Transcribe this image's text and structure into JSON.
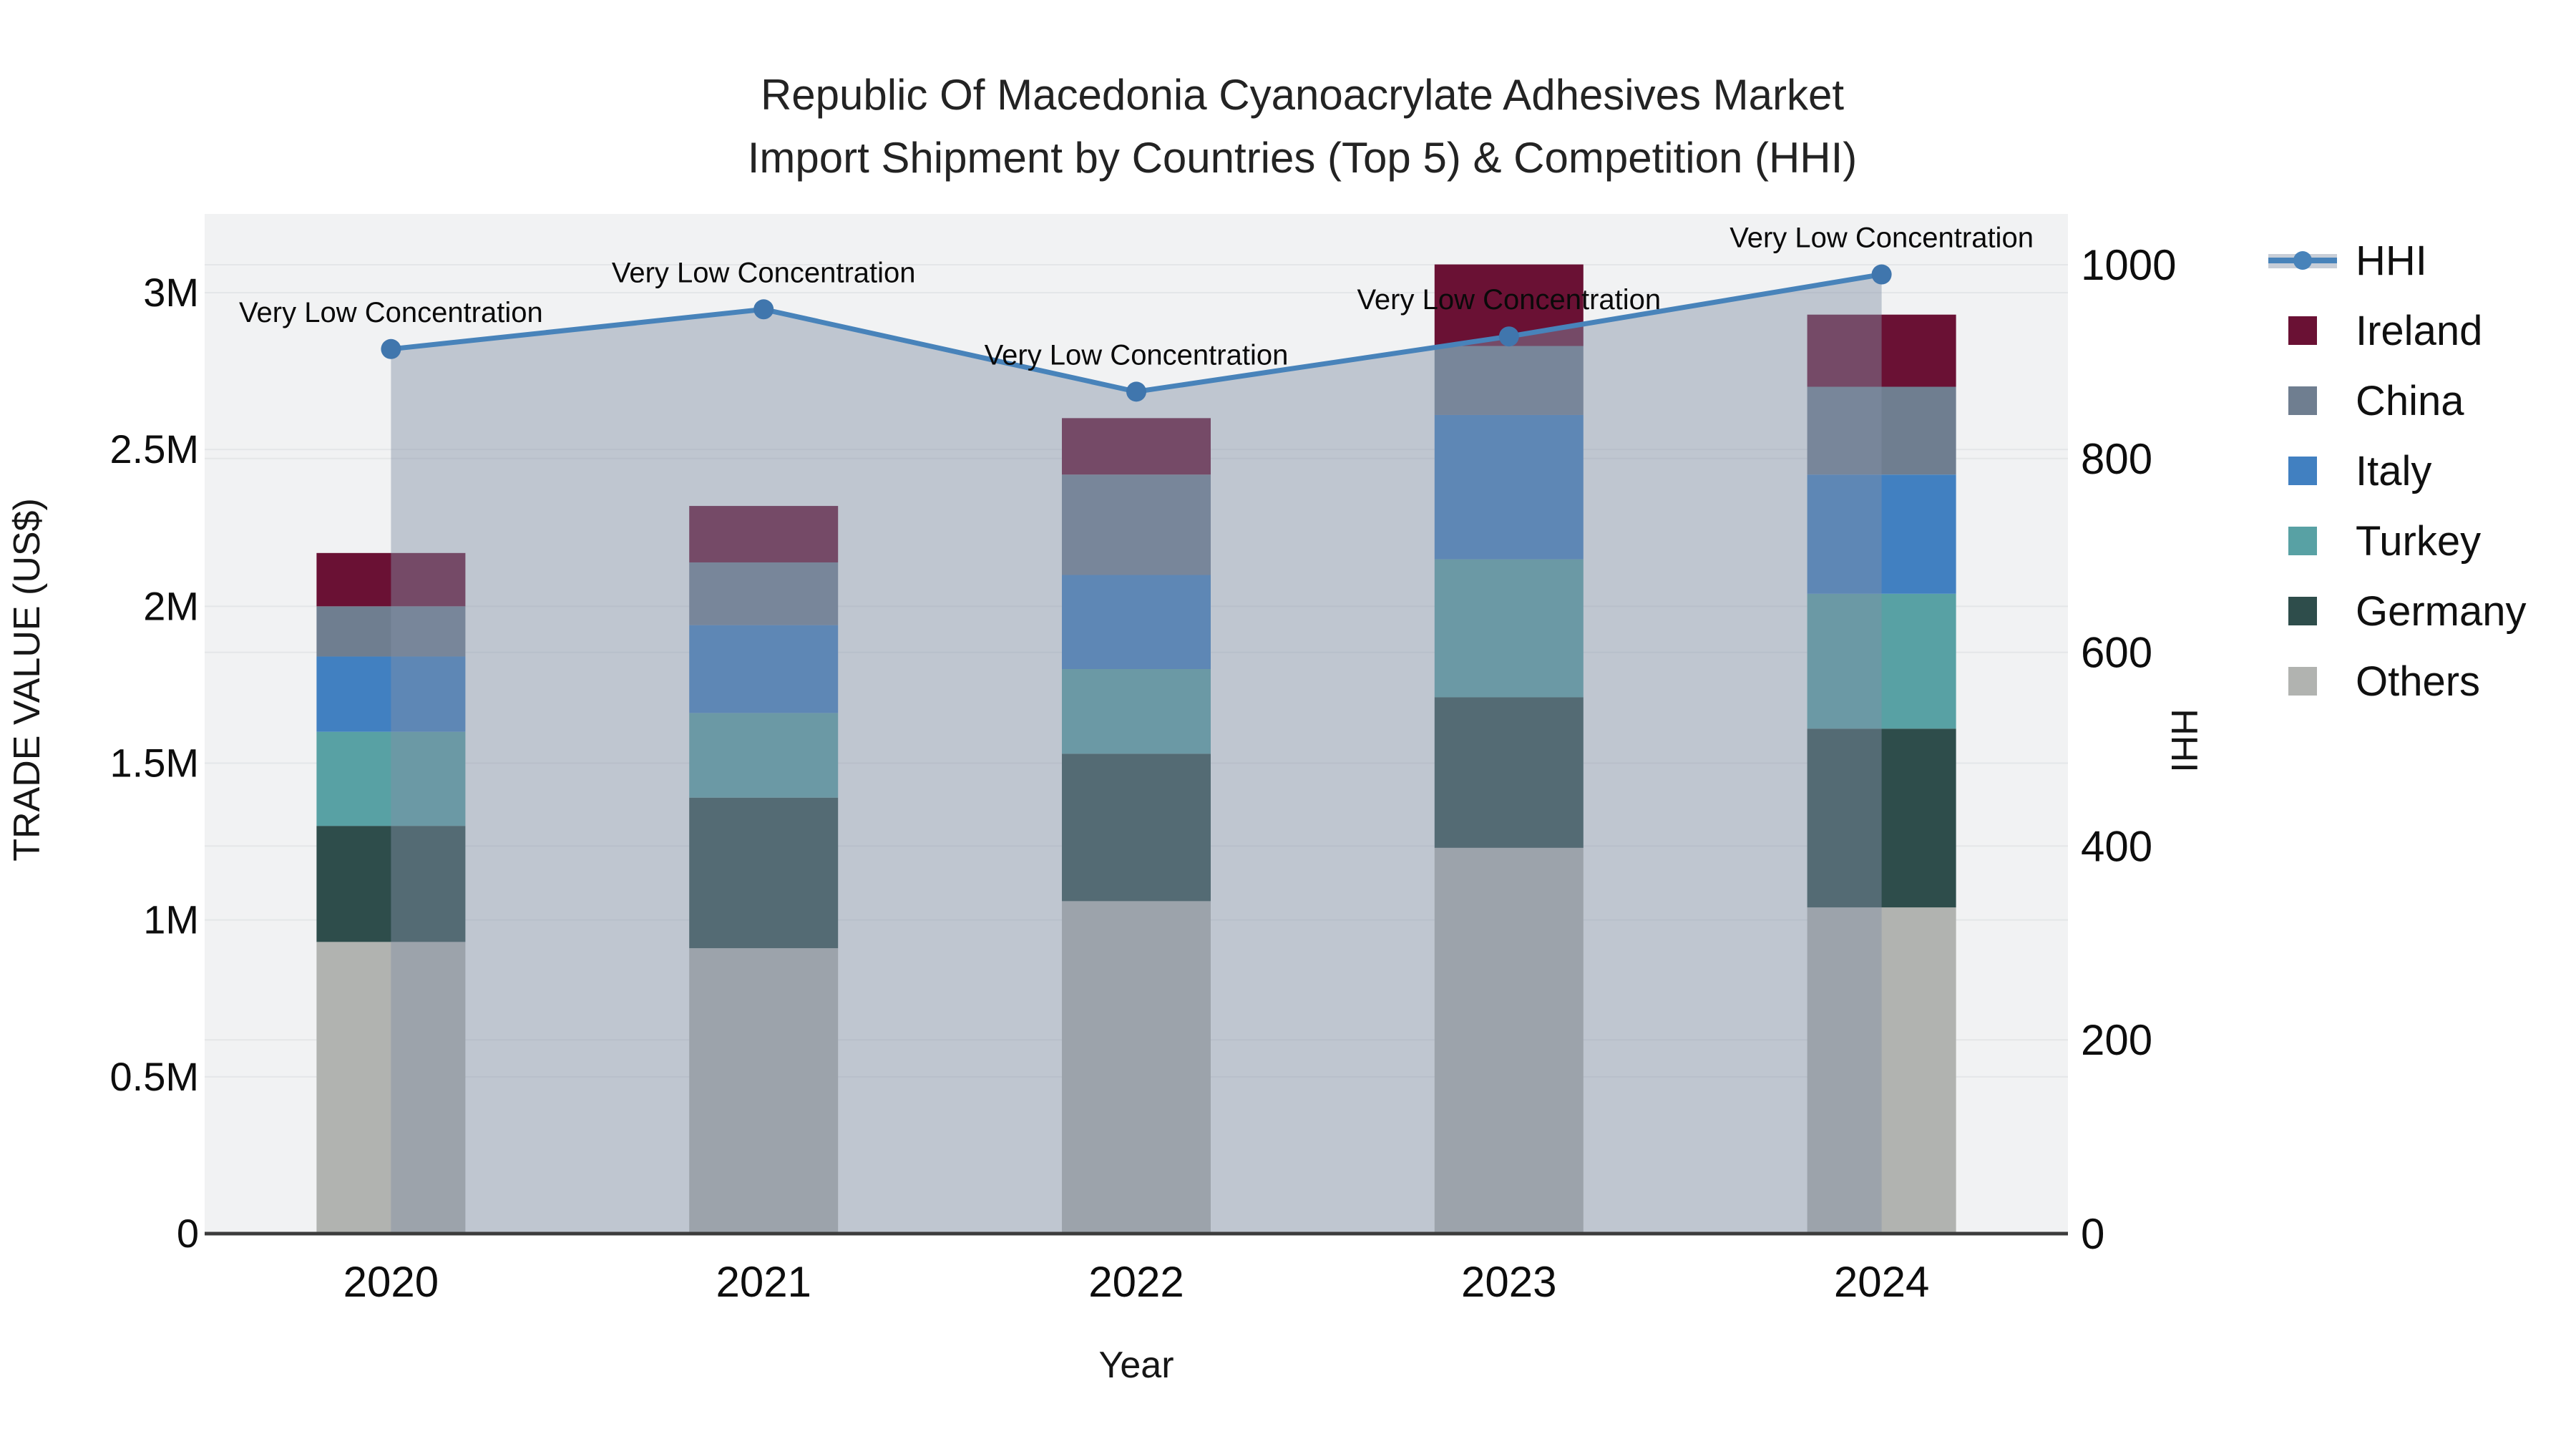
{
  "title": {
    "line1": "Republic Of Macedonia Cyanoacrylate Adhesives Market",
    "line2": "Import Shipment by Countries (Top 5) & Competition (HHI)"
  },
  "axes": {
    "x": {
      "title": "Year"
    },
    "y_left": {
      "title": "TRADE VALUE (US$)",
      "ticks": [
        "0",
        "0.5M",
        "1M",
        "1.5M",
        "2M",
        "2.5M",
        "3M"
      ]
    },
    "y_right": {
      "title": "HHI",
      "ticks": [
        "0",
        "200",
        "400",
        "600",
        "800",
        "1000"
      ]
    }
  },
  "legend": {
    "items": [
      {
        "label": "HHI",
        "type": "line",
        "color": "#4883ba"
      },
      {
        "label": "Ireland",
        "type": "box",
        "color": "#6a1134"
      },
      {
        "label": "China",
        "type": "box",
        "color": "#6f7e90"
      },
      {
        "label": "Italy",
        "type": "box",
        "color": "#4180c1"
      },
      {
        "label": "Turkey",
        "type": "box",
        "color": "#58a1a4"
      },
      {
        "label": "Germany",
        "type": "box",
        "color": "#2e4d4b"
      },
      {
        "label": "Others",
        "type": "box",
        "color": "#b1b3b0"
      }
    ]
  },
  "chart_data": {
    "type": "bar+line",
    "title": "Republic Of Macedonia Cyanoacrylate Adhesives Market — Import Shipment by Countries (Top 5) & Competition (HHI)",
    "categories": [
      "2020",
      "2021",
      "2022",
      "2023",
      "2024"
    ],
    "xlabel": "Year",
    "ylabel_left": "TRADE VALUE (US$)",
    "ylabel_right": "HHI",
    "y_left_range": [
      0,
      3250000
    ],
    "y_left_tick_values": [
      0,
      500000,
      1000000,
      1500000,
      2000000,
      2500000,
      3000000
    ],
    "y_right_range": [
      0,
      1052
    ],
    "y_right_tick_values": [
      0,
      200,
      400,
      600,
      800,
      1000
    ],
    "grid": true,
    "legend_position": "right",
    "stack_order_bottom_to_top": [
      "Others",
      "Germany",
      "Turkey",
      "Italy",
      "China",
      "Ireland"
    ],
    "series": [
      {
        "name": "Others",
        "color": "#b1b3b0",
        "values": [
          930000,
          910000,
          1060000,
          1230000,
          1040000
        ]
      },
      {
        "name": "Germany",
        "color": "#2e4d4b",
        "values": [
          370000,
          480000,
          470000,
          480000,
          570000
        ]
      },
      {
        "name": "Turkey",
        "color": "#58a1a4",
        "values": [
          300000,
          270000,
          270000,
          440000,
          430000
        ]
      },
      {
        "name": "Italy",
        "color": "#4180c1",
        "values": [
          240000,
          280000,
          300000,
          460000,
          380000
        ]
      },
      {
        "name": "China",
        "color": "#6f7e90",
        "values": [
          160000,
          200000,
          320000,
          220000,
          280000
        ]
      },
      {
        "name": "Ireland",
        "color": "#6a1134",
        "values": [
          170000,
          180000,
          180000,
          260000,
          230000
        ]
      }
    ],
    "bar_totals": [
      2170000,
      2320000,
      2600000,
      3090000,
      2930000
    ],
    "line": {
      "name": "HHI",
      "color": "#4883ba",
      "marker_color": "#4076ad",
      "fill_color": "rgba(130,144,166,0.45)",
      "values": [
        913,
        954,
        869,
        926,
        990
      ],
      "annotations": [
        "Very Low Concentration",
        "Very Low Concentration",
        "Very Low Concentration",
        "Very Low Concentration",
        "Very Low Concentration"
      ]
    }
  }
}
